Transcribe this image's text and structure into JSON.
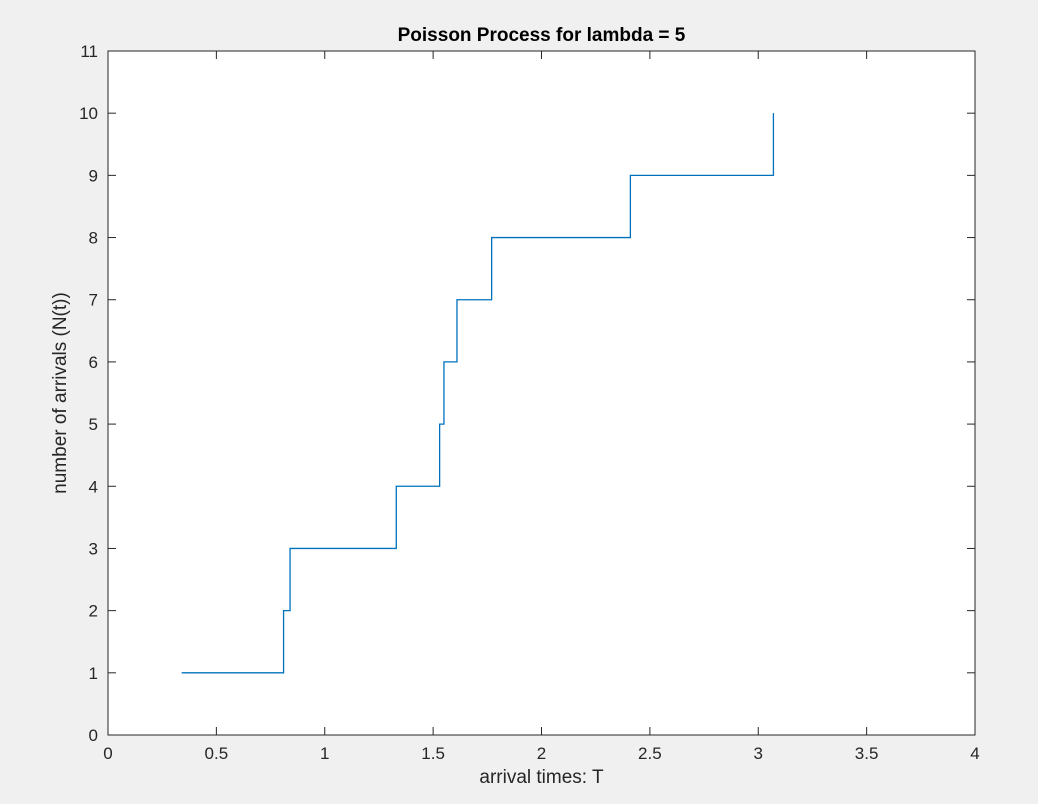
{
  "chart_data": {
    "type": "line",
    "step": "post",
    "title": "Poisson Process for lambda = 5",
    "xlabel": "arrival times: T",
    "ylabel": "number of arrivals (N(t))",
    "xlim": [
      0,
      4
    ],
    "ylim": [
      0,
      11
    ],
    "xticks": [
      "0",
      "0.5",
      "1",
      "1.5",
      "2",
      "2.5",
      "3",
      "3.5",
      "4"
    ],
    "yticks": [
      "0",
      "1",
      "2",
      "3",
      "4",
      "5",
      "6",
      "7",
      "8",
      "9",
      "10",
      "11"
    ],
    "grid": false,
    "series": [
      {
        "color": "#0072bd",
        "x": [
          0.34,
          0.81,
          0.84,
          1.33,
          1.53,
          1.55,
          1.61,
          1.77,
          2.41,
          3.07
        ],
        "y": [
          1,
          2,
          3,
          4,
          5,
          6,
          7,
          8,
          9,
          10
        ]
      }
    ]
  },
  "colors": {
    "figure_background": "#f0f0f0",
    "axes_background": "#ffffff",
    "axes_edge": "#262626",
    "line": "#0072bd"
  }
}
